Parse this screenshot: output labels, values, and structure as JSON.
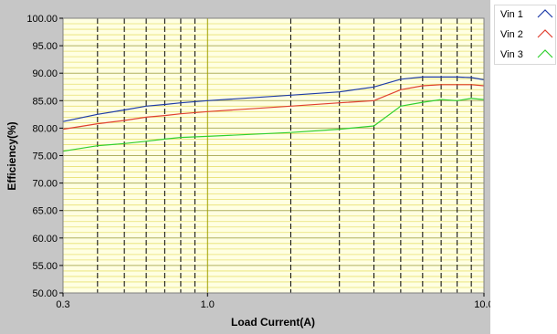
{
  "chart_data": {
    "type": "line",
    "title": "",
    "xlabel": "Load Current(A)",
    "ylabel": "Efficiency(%)",
    "xscale": "log",
    "xlim": [
      0.3,
      10.0
    ],
    "ylim": [
      50.0,
      100.0
    ],
    "x_ticks": [
      "0.3",
      "1.0",
      "10.0"
    ],
    "y_ticks": [
      "50.00",
      "55.00",
      "60.00",
      "65.00",
      "70.00",
      "75.00",
      "80.00",
      "85.00",
      "90.00",
      "95.00",
      "100.00"
    ],
    "grid": true,
    "legend_position": "top-right",
    "colors": {
      "frame": "#c6c6c6",
      "plot_bg": "#ffffe2",
      "minor_grid": "#e8e070",
      "major_grid_y": "#b0b060",
      "major_grid_x": "#000000",
      "highlight_grid": "#a0a000"
    },
    "series": [
      {
        "name": "Vin 1",
        "color": "#1e3ca8",
        "x": [
          0.3,
          0.4,
          0.5,
          0.6,
          0.7,
          0.8,
          1.0,
          2.0,
          3.0,
          4.0,
          5.0,
          6.0,
          7.0,
          8.0,
          9.0,
          10.0
        ],
        "y": [
          81.2,
          82.5,
          83.3,
          84.0,
          84.3,
          84.6,
          85.0,
          86.0,
          86.6,
          87.5,
          88.9,
          89.3,
          89.3,
          89.3,
          89.2,
          88.8
        ]
      },
      {
        "name": "Vin 2",
        "color": "#e04030",
        "x": [
          0.3,
          0.4,
          0.5,
          0.6,
          0.7,
          0.8,
          1.0,
          2.0,
          3.0,
          4.0,
          5.0,
          6.0,
          7.0,
          8.0,
          9.0,
          10.0
        ],
        "y": [
          79.8,
          80.8,
          81.4,
          82.0,
          82.3,
          82.6,
          83.0,
          84.0,
          84.6,
          85.0,
          87.0,
          87.7,
          87.9,
          87.9,
          87.9,
          87.7
        ]
      },
      {
        "name": "Vin 3",
        "color": "#30d030",
        "x": [
          0.3,
          0.4,
          0.5,
          0.6,
          0.7,
          0.8,
          1.0,
          2.0,
          3.0,
          4.0,
          5.0,
          6.0,
          7.0,
          8.0,
          9.0,
          10.0
        ],
        "y": [
          75.8,
          76.8,
          77.2,
          77.6,
          78.0,
          78.3,
          78.5,
          79.2,
          79.8,
          80.4,
          84.0,
          84.7,
          85.2,
          85.0,
          85.4,
          85.2
        ]
      }
    ]
  }
}
